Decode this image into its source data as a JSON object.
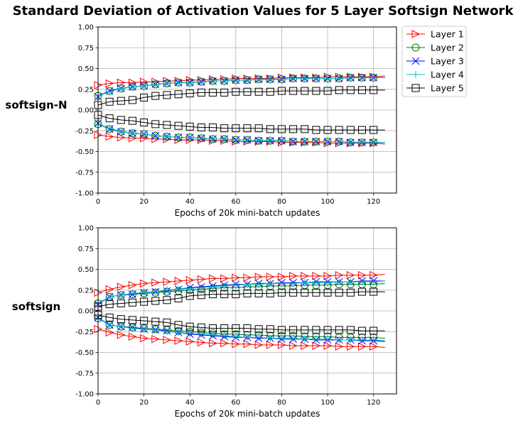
{
  "title": "Standard Deviation of Activation Values for 5 Layer Softsign Network",
  "legend": {
    "placement": "right-of-top-panel",
    "entries": [
      {
        "label": "Layer 1",
        "color": "#ff0000",
        "marker": "triangle-right"
      },
      {
        "label": "Layer 2",
        "color": "#008000",
        "marker": "circle"
      },
      {
        "label": "Layer 3",
        "color": "#0000ff",
        "marker": "x"
      },
      {
        "label": "Layer 4",
        "color": "#00bfbf",
        "marker": "plus"
      },
      {
        "label": "Layer 5",
        "color": "#000000",
        "marker": "square"
      }
    ]
  },
  "chart_data": [
    {
      "type": "line",
      "row_label": "softsign-N",
      "xlabel": "Epochs of 20k mini-batch updates",
      "ylabel": "",
      "xlim": [
        0,
        130
      ],
      "ylim": [
        -1.0,
        1.0
      ],
      "xticks": [
        0,
        20,
        40,
        60,
        80,
        100,
        120
      ],
      "yticks": [
        "-1.00",
        "-0.75",
        "-0.50",
        "-0.25",
        "0.00",
        "0.25",
        "0.50",
        "0.75",
        "1.00"
      ],
      "grid": true,
      "x": [
        0,
        5,
        10,
        15,
        20,
        25,
        30,
        35,
        40,
        45,
        50,
        55,
        60,
        65,
        70,
        75,
        80,
        85,
        90,
        95,
        100,
        105,
        110,
        115,
        120,
        125
      ],
      "series": [
        {
          "name": "Layer 1",
          "upper": [
            0.3,
            0.32,
            0.33,
            0.33,
            0.34,
            0.34,
            0.35,
            0.35,
            0.36,
            0.36,
            0.37,
            0.37,
            0.38,
            0.38,
            0.38,
            0.38,
            0.39,
            0.39,
            0.39,
            0.39,
            0.4,
            0.4,
            0.4,
            0.4,
            0.4,
            0.41
          ],
          "lower": [
            -0.3,
            -0.32,
            -0.33,
            -0.34,
            -0.34,
            -0.35,
            -0.35,
            -0.36,
            -0.36,
            -0.36,
            -0.37,
            -0.37,
            -0.38,
            -0.38,
            -0.38,
            -0.38,
            -0.39,
            -0.39,
            -0.39,
            -0.39,
            -0.4,
            -0.4,
            -0.4,
            -0.4,
            -0.4,
            -0.41
          ]
        },
        {
          "name": "Layer 2",
          "upper": [
            0.17,
            0.23,
            0.26,
            0.28,
            0.29,
            0.31,
            0.32,
            0.33,
            0.33,
            0.34,
            0.35,
            0.35,
            0.36,
            0.36,
            0.37,
            0.37,
            0.37,
            0.38,
            0.38,
            0.38,
            0.38,
            0.38,
            0.39,
            0.39,
            0.39,
            0.39
          ],
          "lower": [
            -0.17,
            -0.23,
            -0.26,
            -0.28,
            -0.29,
            -0.31,
            -0.32,
            -0.33,
            -0.33,
            -0.34,
            -0.35,
            -0.35,
            -0.36,
            -0.36,
            -0.37,
            -0.37,
            -0.37,
            -0.38,
            -0.38,
            -0.38,
            -0.38,
            -0.38,
            -0.39,
            -0.39,
            -0.39,
            -0.39
          ]
        },
        {
          "name": "Layer 3",
          "upper": [
            0.16,
            0.23,
            0.26,
            0.28,
            0.29,
            0.31,
            0.32,
            0.33,
            0.33,
            0.34,
            0.35,
            0.35,
            0.36,
            0.36,
            0.37,
            0.37,
            0.37,
            0.38,
            0.38,
            0.38,
            0.38,
            0.38,
            0.39,
            0.39,
            0.39,
            0.39
          ],
          "lower": [
            -0.16,
            -0.23,
            -0.26,
            -0.28,
            -0.29,
            -0.31,
            -0.32,
            -0.33,
            -0.33,
            -0.34,
            -0.35,
            -0.35,
            -0.36,
            -0.36,
            -0.37,
            -0.37,
            -0.37,
            -0.38,
            -0.38,
            -0.38,
            -0.38,
            -0.38,
            -0.39,
            -0.39,
            -0.39,
            -0.39
          ]
        },
        {
          "name": "Layer 4",
          "upper": [
            0.17,
            0.22,
            0.26,
            0.28,
            0.29,
            0.31,
            0.32,
            0.33,
            0.33,
            0.34,
            0.35,
            0.35,
            0.36,
            0.36,
            0.37,
            0.37,
            0.37,
            0.38,
            0.38,
            0.38,
            0.38,
            0.38,
            0.39,
            0.39,
            0.39,
            0.39
          ],
          "lower": [
            -0.17,
            -0.22,
            -0.26,
            -0.28,
            -0.29,
            -0.31,
            -0.32,
            -0.33,
            -0.33,
            -0.34,
            -0.35,
            -0.35,
            -0.36,
            -0.36,
            -0.37,
            -0.37,
            -0.37,
            -0.38,
            -0.38,
            -0.38,
            -0.38,
            -0.38,
            -0.39,
            -0.39,
            -0.39,
            -0.39
          ]
        },
        {
          "name": "Layer 5",
          "upper": [
            0.06,
            0.1,
            0.11,
            0.12,
            0.15,
            0.17,
            0.18,
            0.19,
            0.2,
            0.21,
            0.21,
            0.21,
            0.22,
            0.22,
            0.22,
            0.22,
            0.23,
            0.23,
            0.23,
            0.23,
            0.23,
            0.24,
            0.24,
            0.24,
            0.24,
            0.24
          ],
          "lower": [
            -0.06,
            -0.1,
            -0.12,
            -0.13,
            -0.15,
            -0.17,
            -0.18,
            -0.19,
            -0.2,
            -0.21,
            -0.21,
            -0.22,
            -0.22,
            -0.22,
            -0.22,
            -0.23,
            -0.23,
            -0.23,
            -0.23,
            -0.24,
            -0.24,
            -0.24,
            -0.24,
            -0.24,
            -0.24,
            -0.24
          ]
        }
      ]
    },
    {
      "type": "line",
      "row_label": "softsign",
      "xlabel": "Epochs of 20k mini-batch updates",
      "ylabel": "",
      "xlim": [
        0,
        130
      ],
      "ylim": [
        -1.0,
        1.0
      ],
      "xticks": [
        0,
        20,
        40,
        60,
        80,
        100,
        120
      ],
      "yticks": [
        "-1.00",
        "-0.75",
        "-0.50",
        "-0.25",
        "0.00",
        "0.25",
        "0.50",
        "0.75",
        "1.00"
      ],
      "grid": true,
      "x": [
        0,
        5,
        10,
        15,
        20,
        25,
        30,
        35,
        40,
        45,
        50,
        55,
        60,
        65,
        70,
        75,
        80,
        85,
        90,
        95,
        100,
        105,
        110,
        115,
        120,
        125
      ],
      "series": [
        {
          "name": "Layer 1",
          "upper": [
            0.22,
            0.26,
            0.29,
            0.31,
            0.33,
            0.34,
            0.35,
            0.36,
            0.37,
            0.38,
            0.39,
            0.39,
            0.4,
            0.4,
            0.41,
            0.41,
            0.41,
            0.42,
            0.42,
            0.42,
            0.42,
            0.43,
            0.43,
            0.43,
            0.43,
            0.44
          ],
          "lower": [
            -0.22,
            -0.26,
            -0.29,
            -0.31,
            -0.33,
            -0.34,
            -0.35,
            -0.36,
            -0.37,
            -0.38,
            -0.39,
            -0.39,
            -0.4,
            -0.4,
            -0.41,
            -0.41,
            -0.41,
            -0.42,
            -0.42,
            -0.42,
            -0.42,
            -0.43,
            -0.43,
            -0.43,
            -0.43,
            -0.44
          ]
        },
        {
          "name": "Layer 2",
          "upper": [
            0.09,
            0.17,
            0.19,
            0.2,
            0.21,
            0.22,
            0.23,
            0.24,
            0.25,
            0.26,
            0.27,
            0.28,
            0.28,
            0.29,
            0.29,
            0.3,
            0.3,
            0.3,
            0.31,
            0.31,
            0.31,
            0.32,
            0.32,
            0.32,
            0.32,
            0.33
          ],
          "lower": [
            -0.09,
            -0.17,
            -0.19,
            -0.2,
            -0.21,
            -0.22,
            -0.23,
            -0.24,
            -0.25,
            -0.26,
            -0.27,
            -0.28,
            -0.28,
            -0.29,
            -0.29,
            -0.3,
            -0.3,
            -0.3,
            -0.31,
            -0.31,
            -0.31,
            -0.32,
            -0.32,
            -0.32,
            -0.32,
            -0.33
          ]
        },
        {
          "name": "Layer 3",
          "upper": [
            0.08,
            0.17,
            0.19,
            0.2,
            0.22,
            0.23,
            0.24,
            0.26,
            0.28,
            0.29,
            0.3,
            0.31,
            0.32,
            0.32,
            0.33,
            0.33,
            0.34,
            0.34,
            0.34,
            0.35,
            0.35,
            0.35,
            0.35,
            0.36,
            0.36,
            0.36
          ],
          "lower": [
            -0.08,
            -0.17,
            -0.19,
            -0.2,
            -0.22,
            -0.23,
            -0.24,
            -0.26,
            -0.28,
            -0.29,
            -0.3,
            -0.31,
            -0.32,
            -0.32,
            -0.33,
            -0.33,
            -0.34,
            -0.34,
            -0.34,
            -0.35,
            -0.35,
            -0.35,
            -0.35,
            -0.36,
            -0.36,
            -0.37
          ]
        },
        {
          "name": "Layer 4",
          "upper": [
            0.09,
            0.17,
            0.19,
            0.21,
            0.22,
            0.23,
            0.25,
            0.26,
            0.27,
            0.28,
            0.29,
            0.3,
            0.31,
            0.32,
            0.32,
            0.33,
            0.33,
            0.33,
            0.34,
            0.34,
            0.34,
            0.35,
            0.35,
            0.35,
            0.35,
            0.36
          ],
          "lower": [
            -0.09,
            -0.17,
            -0.19,
            -0.21,
            -0.22,
            -0.23,
            -0.25,
            -0.26,
            -0.27,
            -0.28,
            -0.29,
            -0.3,
            -0.31,
            -0.32,
            -0.32,
            -0.33,
            -0.33,
            -0.33,
            -0.34,
            -0.34,
            -0.34,
            -0.35,
            -0.35,
            -0.35,
            -0.35,
            -0.36
          ]
        },
        {
          "name": "Layer 5",
          "upper": [
            0.05,
            0.08,
            0.09,
            0.1,
            0.11,
            0.12,
            0.13,
            0.15,
            0.18,
            0.19,
            0.2,
            0.2,
            0.2,
            0.21,
            0.21,
            0.21,
            0.22,
            0.22,
            0.22,
            0.22,
            0.22,
            0.22,
            0.22,
            0.23,
            0.23,
            0.23
          ],
          "lower": [
            -0.05,
            -0.08,
            -0.1,
            -0.11,
            -0.12,
            -0.13,
            -0.14,
            -0.17,
            -0.19,
            -0.2,
            -0.21,
            -0.21,
            -0.21,
            -0.21,
            -0.22,
            -0.22,
            -0.23,
            -0.23,
            -0.23,
            -0.23,
            -0.23,
            -0.23,
            -0.23,
            -0.24,
            -0.24,
            -0.24
          ]
        }
      ]
    }
  ]
}
